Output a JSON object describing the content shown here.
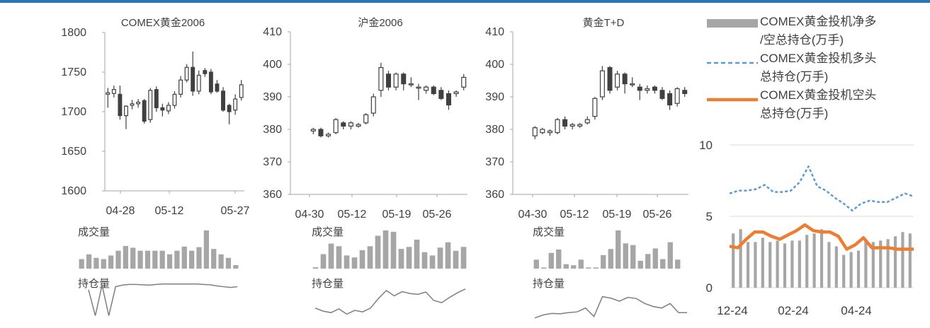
{
  "chart_data": [
    {
      "type": "candlestick",
      "title": "COMEX黄金2006",
      "y_ticks": [
        1800,
        1750,
        1700,
        1650,
        1600
      ],
      "ylim": [
        1600,
        1800
      ],
      "x_tick_labels": [
        "04-28",
        "05-12",
        "05-27"
      ],
      "candles": [
        {
          "o": 1722,
          "h": 1730,
          "l": 1705,
          "c": 1724
        },
        {
          "o": 1723,
          "h": 1733,
          "l": 1718,
          "c": 1728
        },
        {
          "o": 1722,
          "h": 1733,
          "l": 1690,
          "c": 1695
        },
        {
          "o": 1695,
          "h": 1708,
          "l": 1678,
          "c": 1707
        },
        {
          "o": 1708,
          "h": 1715,
          "l": 1703,
          "c": 1710
        },
        {
          "o": 1710,
          "h": 1716,
          "l": 1705,
          "c": 1712
        },
        {
          "o": 1714,
          "h": 1716,
          "l": 1685,
          "c": 1688
        },
        {
          "o": 1690,
          "h": 1730,
          "l": 1686,
          "c": 1727
        },
        {
          "o": 1728,
          "h": 1732,
          "l": 1700,
          "c": 1705
        },
        {
          "o": 1705,
          "h": 1710,
          "l": 1694,
          "c": 1702
        },
        {
          "o": 1701,
          "h": 1712,
          "l": 1697,
          "c": 1708
        },
        {
          "o": 1708,
          "h": 1726,
          "l": 1704,
          "c": 1722
        },
        {
          "o": 1722,
          "h": 1745,
          "l": 1718,
          "c": 1740
        },
        {
          "o": 1740,
          "h": 1760,
          "l": 1737,
          "c": 1756
        },
        {
          "o": 1756,
          "h": 1776,
          "l": 1720,
          "c": 1726
        },
        {
          "o": 1726,
          "h": 1752,
          "l": 1722,
          "c": 1746
        },
        {
          "o": 1752,
          "h": 1755,
          "l": 1744,
          "c": 1748
        },
        {
          "o": 1750,
          "h": 1754,
          "l": 1722,
          "c": 1725
        },
        {
          "o": 1735,
          "h": 1740,
          "l": 1724,
          "c": 1726
        },
        {
          "o": 1726,
          "h": 1731,
          "l": 1700,
          "c": 1702
        },
        {
          "o": 1708,
          "h": 1710,
          "l": 1684,
          "c": 1700
        },
        {
          "o": 1702,
          "h": 1722,
          "l": 1696,
          "c": 1716
        },
        {
          "o": 1718,
          "h": 1740,
          "l": 1714,
          "c": 1734
        }
      ],
      "sub_panels": {
        "volume_label": "成交量",
        "volume": [
          16,
          24,
          18,
          16,
          22,
          30,
          38,
          35,
          30,
          30,
          30,
          30,
          24,
          30,
          37,
          30,
          36,
          64,
          33,
          24,
          18,
          6
        ],
        "open_interest_label": "持仓量",
        "open_interest": [
          78,
          10,
          90,
          10,
          86,
          90,
          92,
          92,
          91,
          90,
          92,
          93,
          93,
          93,
          93,
          93,
          93,
          92,
          91,
          88,
          86,
          84,
          86
        ]
      }
    },
    {
      "type": "candlestick",
      "title": "沪金2006",
      "y_ticks": [
        410,
        400,
        390,
        380,
        370,
        360
      ],
      "ylim": [
        360,
        410
      ],
      "x_tick_labels": [
        "04-30",
        "05-12",
        "05-19",
        "05-26"
      ],
      "candles": [
        {
          "o": 379.5,
          "h": 380.5,
          "l": 378.5,
          "c": 380
        },
        {
          "o": 380,
          "h": 380.5,
          "l": 377.5,
          "c": 378
        },
        {
          "o": 378,
          "h": 379,
          "l": 377.5,
          "c": 378.5
        },
        {
          "o": 379,
          "h": 383.5,
          "l": 378.5,
          "c": 383
        },
        {
          "o": 382,
          "h": 382.5,
          "l": 380,
          "c": 381
        },
        {
          "o": 381,
          "h": 382.5,
          "l": 380,
          "c": 382
        },
        {
          "o": 381,
          "h": 382,
          "l": 380.5,
          "c": 381.5
        },
        {
          "o": 382,
          "h": 385,
          "l": 381.5,
          "c": 384.5
        },
        {
          "o": 385,
          "h": 391,
          "l": 384,
          "c": 390
        },
        {
          "o": 392,
          "h": 400.5,
          "l": 390,
          "c": 399
        },
        {
          "o": 397,
          "h": 398,
          "l": 392,
          "c": 393
        },
        {
          "o": 393,
          "h": 397.5,
          "l": 392,
          "c": 397
        },
        {
          "o": 397,
          "h": 397.5,
          "l": 392,
          "c": 394
        },
        {
          "o": 394,
          "h": 396,
          "l": 393,
          "c": 394
        },
        {
          "o": 393,
          "h": 394,
          "l": 389,
          "c": 393
        },
        {
          "o": 392,
          "h": 393.5,
          "l": 391,
          "c": 393
        },
        {
          "o": 393,
          "h": 393.5,
          "l": 390.5,
          "c": 391
        },
        {
          "o": 392,
          "h": 393,
          "l": 389,
          "c": 389.5
        },
        {
          "o": 391,
          "h": 392,
          "l": 386,
          "c": 387.5
        },
        {
          "o": 391,
          "h": 392,
          "l": 390,
          "c": 391.5
        },
        {
          "o": 393,
          "h": 397,
          "l": 392,
          "c": 396
        }
      ],
      "sub_panels": {
        "volume_label": "成交量",
        "volume": [
          2,
          22,
          38,
          34,
          20,
          17,
          28,
          34,
          50,
          58,
          56,
          30,
          33,
          44,
          25,
          20,
          32,
          40,
          27,
          33
        ],
        "open_interest_label": "持仓量",
        "open_interest": [
          30,
          22,
          18,
          28,
          14,
          24,
          20,
          30,
          55,
          76,
          62,
          73,
          68,
          66,
          72,
          50,
          44,
          58,
          70,
          80
        ]
      }
    },
    {
      "type": "candlestick",
      "title": "黄金T+D",
      "y_ticks": [
        410,
        400,
        390,
        380,
        370,
        360
      ],
      "ylim": [
        360,
        410
      ],
      "x_tick_labels": [
        "04-30",
        "05-12",
        "05-19",
        "05-26"
      ],
      "candles": [
        {
          "o": 378,
          "h": 381,
          "l": 377,
          "c": 380.5
        },
        {
          "o": 379,
          "h": 380.5,
          "l": 378.5,
          "c": 380
        },
        {
          "o": 379,
          "h": 380,
          "l": 378,
          "c": 379.5
        },
        {
          "o": 379,
          "h": 383.5,
          "l": 378.5,
          "c": 383
        },
        {
          "o": 383,
          "h": 384,
          "l": 380,
          "c": 381
        },
        {
          "o": 381,
          "h": 382,
          "l": 380,
          "c": 381.5
        },
        {
          "o": 381,
          "h": 382,
          "l": 380.5,
          "c": 381.5
        },
        {
          "o": 382,
          "h": 384,
          "l": 381.5,
          "c": 383
        },
        {
          "o": 384,
          "h": 390,
          "l": 383,
          "c": 389.5
        },
        {
          "o": 390,
          "h": 399.5,
          "l": 389,
          "c": 398
        },
        {
          "o": 399,
          "h": 399.5,
          "l": 391,
          "c": 392
        },
        {
          "o": 393,
          "h": 398,
          "l": 392,
          "c": 397
        },
        {
          "o": 397,
          "h": 397.5,
          "l": 391,
          "c": 394
        },
        {
          "o": 394,
          "h": 396,
          "l": 393,
          "c": 394
        },
        {
          "o": 393,
          "h": 394,
          "l": 389,
          "c": 392
        },
        {
          "o": 392,
          "h": 393.5,
          "l": 391,
          "c": 392.5
        },
        {
          "o": 393,
          "h": 393.5,
          "l": 391,
          "c": 392
        },
        {
          "o": 392,
          "h": 393,
          "l": 389,
          "c": 389.5
        },
        {
          "o": 391,
          "h": 392,
          "l": 386,
          "c": 387.5
        },
        {
          "o": 388,
          "h": 393,
          "l": 387,
          "c": 392.5
        },
        {
          "o": 392,
          "h": 393,
          "l": 390,
          "c": 391
        }
      ],
      "sub_panels": {
        "volume_label": "成交量",
        "volume": [
          16,
          2,
          28,
          34,
          8,
          6,
          16,
          2,
          2,
          24,
          35,
          68,
          45,
          42,
          14,
          26,
          36,
          17,
          47,
          16
        ],
        "open_interest_label": "持仓量",
        "open_interest": [
          4,
          12,
          16,
          15,
          18,
          20,
          30,
          8,
          60,
          56,
          48,
          58,
          55,
          42,
          34,
          30,
          42,
          18,
          18
        ]
      }
    },
    {
      "type": "bar-line",
      "y_ticks": [
        10,
        5,
        0
      ],
      "ylim": [
        0,
        10
      ],
      "x_tick_labels": [
        "12-24",
        "02-24",
        "04-24"
      ],
      "legend_position": "top",
      "series": [
        {
          "name": "COMEX黄金投机净多/空总持仓(万手)",
          "kind": "bar",
          "color": "#a6a6a6",
          "values": [
            3.8,
            4.1,
            3.2,
            3.2,
            3.5,
            3.2,
            3.3,
            3.1,
            3.3,
            3.3,
            3.7,
            3.8,
            4.1,
            3.2,
            2.9,
            2.3,
            2.5,
            2.6,
            3.3,
            3.2,
            3.3,
            3.4,
            3.6,
            3.9,
            3.8
          ]
        },
        {
          "name": "COMEX黄金投机多头总持仓(万手)",
          "kind": "dashed-line",
          "color": "#5b9bd5",
          "values": [
            6.6,
            6.8,
            6.8,
            6.9,
            7.2,
            6.7,
            6.7,
            6.8,
            7.4,
            8.5,
            7.1,
            6.8,
            6.3,
            5.9,
            5.4,
            5.9,
            6.1,
            6.0,
            6.0,
            6.3,
            6.6,
            6.4
          ]
        },
        {
          "name": "COMEX黄金投机空头总持仓(万手)",
          "kind": "solid-line",
          "color": "#ed7d31",
          "values": [
            2.9,
            2.8,
            3.4,
            3.9,
            3.9,
            3.6,
            3.4,
            3.7,
            4.0,
            4.4,
            4.0,
            3.9,
            3.9,
            3.6,
            2.7,
            3.0,
            3.5,
            2.8,
            2.8,
            2.8,
            2.7,
            2.7,
            2.7
          ]
        }
      ]
    }
  ]
}
